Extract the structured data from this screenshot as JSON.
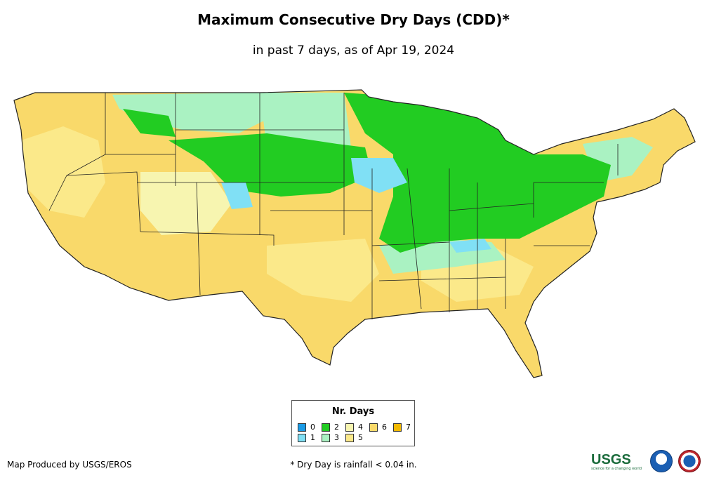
{
  "title": "Maximum Consecutive Dry Days (CDD)*",
  "subtitle": "in past 7 days, as of Apr 19, 2024",
  "legend": {
    "title": "Nr. Days",
    "items": [
      {
        "label": "0",
        "color": "#1a9be6"
      },
      {
        "label": "1",
        "color": "#80e0f5"
      },
      {
        "label": "2",
        "color": "#22cc22"
      },
      {
        "label": "3",
        "color": "#aaf2c2"
      },
      {
        "label": "4",
        "color": "#f7f5b0"
      },
      {
        "label": "5",
        "color": "#fbe98a"
      },
      {
        "label": "6",
        "color": "#f9d96a"
      },
      {
        "label": "7",
        "color": "#f2b900"
      }
    ]
  },
  "footer": {
    "credit": "Map Produced by USGS/EROS",
    "note": "* Dry Day is rainfall < 0.04 in."
  },
  "logos": {
    "usgs": "USGS",
    "usgs_tagline": "science for a changing world",
    "noaa": "noaa",
    "nws": "National Weather Service"
  }
}
